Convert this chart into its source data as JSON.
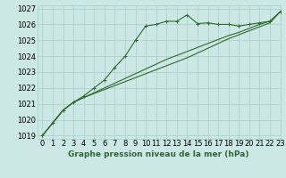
{
  "title": "Graphe pression niveau de la mer (hPa)",
  "bg_color": "#cce8e4",
  "grid_color": "#aaccca",
  "line_color": "#2d6a2d",
  "xlim": [
    -0.5,
    23
  ],
  "ylim": [
    1018.8,
    1027.2
  ],
  "yticks": [
    1019,
    1020,
    1021,
    1022,
    1023,
    1024,
    1025,
    1026,
    1027
  ],
  "xticks": [
    0,
    1,
    2,
    3,
    4,
    5,
    6,
    7,
    8,
    9,
    10,
    11,
    12,
    13,
    14,
    15,
    16,
    17,
    18,
    19,
    20,
    21,
    22,
    23
  ],
  "series1_x": [
    0,
    1,
    2,
    3,
    4,
    5,
    6,
    7,
    8,
    9,
    10,
    11,
    12,
    13,
    14,
    15,
    16,
    17,
    18,
    19,
    20,
    21,
    22,
    23
  ],
  "series1_y": [
    1019.0,
    1019.8,
    1020.6,
    1021.1,
    1021.5,
    1022.0,
    1022.5,
    1023.3,
    1024.0,
    1025.0,
    1025.9,
    1026.0,
    1026.2,
    1026.2,
    1026.6,
    1026.05,
    1026.1,
    1026.0,
    1026.0,
    1025.9,
    1026.0,
    1026.1,
    1026.2,
    1026.8
  ],
  "series2_x": [
    0,
    1,
    2,
    3,
    4,
    5,
    6,
    7,
    8,
    9,
    10,
    11,
    12,
    13,
    14,
    15,
    16,
    17,
    18,
    19,
    20,
    21,
    22,
    23
  ],
  "series2_y": [
    1019.0,
    1019.8,
    1020.6,
    1021.1,
    1021.4,
    1021.7,
    1022.0,
    1022.3,
    1022.6,
    1022.9,
    1023.2,
    1023.5,
    1023.8,
    1024.05,
    1024.3,
    1024.55,
    1024.8,
    1025.05,
    1025.3,
    1025.5,
    1025.75,
    1026.0,
    1026.2,
    1026.8
  ],
  "series3_x": [
    0,
    1,
    2,
    3,
    4,
    5,
    6,
    7,
    8,
    9,
    10,
    11,
    12,
    13,
    14,
    15,
    16,
    17,
    18,
    19,
    20,
    21,
    22,
    23
  ],
  "series3_y": [
    1019.0,
    1019.8,
    1020.6,
    1021.1,
    1021.4,
    1021.65,
    1021.9,
    1022.15,
    1022.4,
    1022.65,
    1022.9,
    1023.15,
    1023.4,
    1023.65,
    1023.9,
    1024.2,
    1024.5,
    1024.8,
    1025.1,
    1025.35,
    1025.6,
    1025.85,
    1026.1,
    1026.8
  ],
  "tick_labelsize": 6,
  "title_fontsize": 6.5
}
